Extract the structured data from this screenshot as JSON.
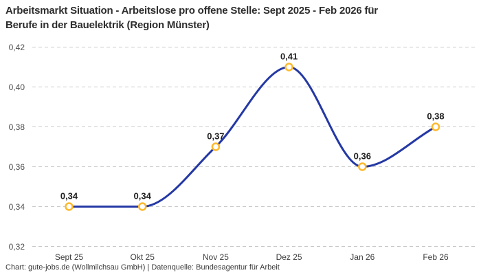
{
  "header": {
    "title_line1": "Arbeitsmarkt Situation - Arbeitslose pro offene Stelle: Sept 2025 - Feb 2026 für",
    "title_line2": "Berufe in der Bauelektrik (Region Münster)"
  },
  "footer": {
    "credit": "Chart: gute-jobs.de (Wollmilchsau GmbH) | Datenquelle: Bundesagentur für Arbeit"
  },
  "chart_data": {
    "type": "line",
    "title": "Arbeitsmarkt Situation - Arbeitslose pro offene Stelle: Sept 2025 - Feb 2026 für Berufe in der Bauelektrik (Region Münster)",
    "categories": [
      "Sept 25",
      "Okt 25",
      "Nov 25",
      "Dez 25",
      "Jan 26",
      "Feb 26"
    ],
    "values": [
      0.34,
      0.34,
      0.37,
      0.41,
      0.36,
      0.38
    ],
    "value_labels": [
      "0,34",
      "0,34",
      "0,37",
      "0,41",
      "0,36",
      "0,38"
    ],
    "y_ticks": [
      0.32,
      0.34,
      0.36,
      0.38,
      0.4,
      0.42
    ],
    "y_tick_labels": [
      "0,32",
      "0,34",
      "0,36",
      "0,38",
      "0,40",
      "0,42"
    ],
    "ylim": [
      0.32,
      0.42
    ],
    "xlabel": "",
    "ylabel": "",
    "legend": "none",
    "grid": "horizontal-dashed",
    "line_style": "smooth-monotone",
    "colors": {
      "line": "#2438A5",
      "marker_stroke": "#FDB92C",
      "marker_fill": "#FFFFFF",
      "grid": "#C9C9C9",
      "y_axis_label": "#4D4D4D",
      "x_axis_label": "#3D3D3D",
      "data_label": "#1F1F1F",
      "title": "#2D2D2D",
      "background": "#FFFFFF"
    }
  }
}
